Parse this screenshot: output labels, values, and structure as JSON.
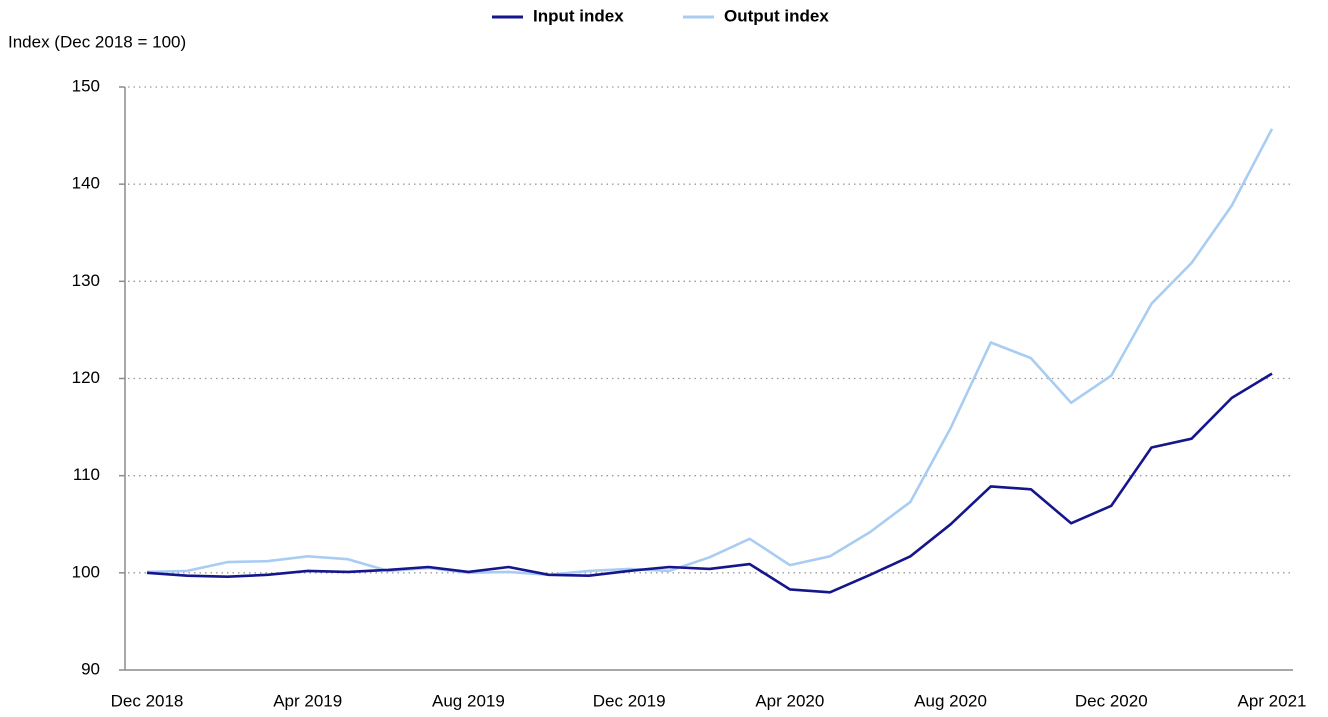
{
  "chart_data": {
    "type": "line",
    "y_label": "Index (Dec 2018 = 100)",
    "categories": [
      "Dec 2018",
      null,
      null,
      null,
      "Apr 2019",
      null,
      null,
      null,
      "Aug 2019",
      null,
      null,
      null,
      "Dec 2019",
      null,
      null,
      null,
      "Apr 2020",
      null,
      null,
      null,
      "Aug 2020",
      null,
      null,
      null,
      "Dec 2020",
      null,
      null,
      null,
      "Apr 2021"
    ],
    "series": [
      {
        "name": "Input index",
        "color": "#16168c",
        "values": [
          100.0,
          99.7,
          99.6,
          99.8,
          100.2,
          100.1,
          100.3,
          100.6,
          100.1,
          100.6,
          99.8,
          99.7,
          100.2,
          100.6,
          100.4,
          100.9,
          98.3,
          98.0,
          99.8,
          101.7,
          105.0,
          108.9,
          108.6,
          105.1,
          106.9,
          112.9,
          113.8,
          118.0,
          120.5
        ]
      },
      {
        "name": "Output index",
        "color": "#a9cdf2",
        "values": [
          100.1,
          100.2,
          101.1,
          101.2,
          101.7,
          101.4,
          100.2,
          100.5,
          100.0,
          100.1,
          99.8,
          100.2,
          100.4,
          100.2,
          101.6,
          103.5,
          100.8,
          101.7,
          104.2,
          107.3,
          114.9,
          123.7,
          122.1,
          117.5,
          120.3,
          127.7,
          131.9,
          137.8,
          145.7
        ]
      }
    ],
    "ylim": [
      90,
      150
    ],
    "yticks": [
      90,
      100,
      110,
      120,
      130,
      140,
      150
    ],
    "grid": true,
    "legend": "top"
  }
}
